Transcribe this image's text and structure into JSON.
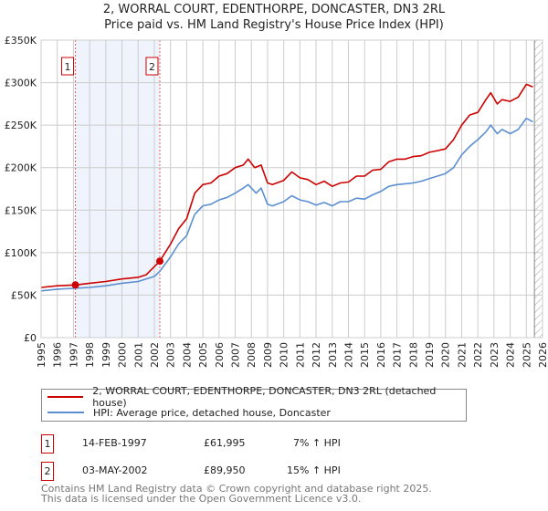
{
  "title_line1": "2, WORRAL COURT, EDENTHORPE, DONCASTER, DN3 2RL",
  "title_line2": "Price paid vs. HM Land Registry's House Price Index (HPI)",
  "chart_data": {
    "type": "line",
    "title": "2, WORRAL COURT, EDENTHORPE, DONCASTER, DN3 2RL — Price paid vs. HM Land Registry's House Price Index (HPI)",
    "xlim": [
      1995,
      2026
    ],
    "ylim": [
      0,
      350000
    ],
    "x_ticks": [
      "1995",
      "1996",
      "1997",
      "1998",
      "1999",
      "2000",
      "2001",
      "2002",
      "2003",
      "2004",
      "2005",
      "2006",
      "2007",
      "2008",
      "2009",
      "2010",
      "2011",
      "2012",
      "2013",
      "2014",
      "2015",
      "2016",
      "2017",
      "2018",
      "2019",
      "2020",
      "2021",
      "2022",
      "2023",
      "2024",
      "2025",
      "2026"
    ],
    "y_ticks": [
      {
        "v": 0,
        "label": "£0"
      },
      {
        "v": 50000,
        "label": "£50K"
      },
      {
        "v": 100000,
        "label": "£100K"
      },
      {
        "v": 150000,
        "label": "£150K"
      },
      {
        "v": 200000,
        "label": "£200K"
      },
      {
        "v": 250000,
        "label": "£250K"
      },
      {
        "v": 300000,
        "label": "£300K"
      },
      {
        "v": 350000,
        "label": "£350K"
      }
    ],
    "grid": true,
    "shaded_range": [
      1997.12,
      2002.34
    ],
    "hatched_from": 2025.5,
    "series": [
      {
        "name": "2, WORRAL COURT, EDENTHORPE, DONCASTER, DN3 2RL (detached house)",
        "color": "#cc0000",
        "x": [
          1995,
          1996,
          1997.12,
          1998,
          1999,
          2000,
          2001,
          2001.5,
          2002.34,
          2003,
          2003.5,
          2004,
          2004.5,
          2005,
          2005.5,
          2006,
          2006.5,
          2007,
          2007.5,
          2007.8,
          2008.2,
          2008.6,
          2009,
          2009.3,
          2010,
          2010.5,
          2011,
          2011.5,
          2012,
          2012.5,
          2013,
          2013.5,
          2014,
          2014.5,
          2015,
          2015.5,
          2016,
          2016.5,
          2017,
          2017.5,
          2018,
          2018.5,
          2019,
          2019.5,
          2020,
          2020.5,
          2021,
          2021.5,
          2022,
          2022.5,
          2022.8,
          2023.2,
          2023.5,
          2024,
          2024.5,
          2025,
          2025.4
        ],
        "y": [
          59000,
          61000,
          61995,
          64000,
          66000,
          69000,
          71000,
          74000,
          89950,
          110000,
          128000,
          140000,
          170000,
          180000,
          182000,
          190000,
          193000,
          200000,
          203000,
          210000,
          200000,
          203000,
          182000,
          180000,
          185000,
          195000,
          188000,
          186000,
          180000,
          184000,
          178000,
          182000,
          183000,
          190000,
          190000,
          197000,
          198000,
          207000,
          210000,
          210000,
          213000,
          214000,
          218000,
          220000,
          222000,
          233000,
          250000,
          262000,
          265000,
          280000,
          288000,
          275000,
          280000,
          278000,
          283000,
          298000,
          295000
        ]
      },
      {
        "name": "HPI: Average price, detached house, Doncaster",
        "color": "#5b8fd0",
        "x": [
          1995,
          1996,
          1997,
          1998,
          1999,
          2000,
          2001,
          2002,
          2002.34,
          2003,
          2003.5,
          2004,
          2004.5,
          2005,
          2005.5,
          2006,
          2006.5,
          2007,
          2007.5,
          2007.8,
          2008.3,
          2008.6,
          2009,
          2009.3,
          2010,
          2010.5,
          2011,
          2011.5,
          2012,
          2012.5,
          2013,
          2013.5,
          2014,
          2014.5,
          2015,
          2015.5,
          2016,
          2016.5,
          2017,
          2017.5,
          2018,
          2018.5,
          2019,
          2019.5,
          2020,
          2020.5,
          2021,
          2021.5,
          2022,
          2022.5,
          2022.8,
          2023.2,
          2023.5,
          2024,
          2024.5,
          2025,
          2025.4
        ],
        "y": [
          55000,
          57000,
          58000,
          59000,
          61000,
          64000,
          66000,
          72000,
          78000,
          95000,
          110000,
          120000,
          145000,
          155000,
          157000,
          162000,
          165000,
          170000,
          176000,
          180000,
          170000,
          176000,
          157000,
          155000,
          160000,
          167000,
          162000,
          160000,
          156000,
          159000,
          155000,
          160000,
          160000,
          164000,
          163000,
          168000,
          172000,
          178000,
          180000,
          181000,
          182000,
          184000,
          187000,
          190000,
          193000,
          200000,
          215000,
          225000,
          233000,
          242000,
          250000,
          240000,
          245000,
          240000,
          245000,
          258000,
          254000
        ]
      }
    ],
    "annotations": [
      {
        "label": "1",
        "x": 1997.12,
        "y": 61995
      },
      {
        "label": "2",
        "x": 2002.34,
        "y": 89950
      }
    ]
  },
  "legend": [
    {
      "label": "2, WORRAL COURT, EDENTHORPE, DONCASTER, DN3 2RL (detached house)",
      "color": "#cc0000"
    },
    {
      "label": "HPI: Average price, detached house, Doncaster",
      "color": "#5b8fd0"
    }
  ],
  "transactions": [
    {
      "num": "1",
      "date": "14-FEB-1997",
      "price": "£61,995",
      "hpi": "7% ↑ HPI"
    },
    {
      "num": "2",
      "date": "03-MAY-2002",
      "price": "£89,950",
      "hpi": "15% ↑ HPI"
    }
  ],
  "footer_line1": "Contains HM Land Registry data © Crown copyright and database right 2025.",
  "footer_line2": "This data is licensed under the Open Government Licence v3.0."
}
